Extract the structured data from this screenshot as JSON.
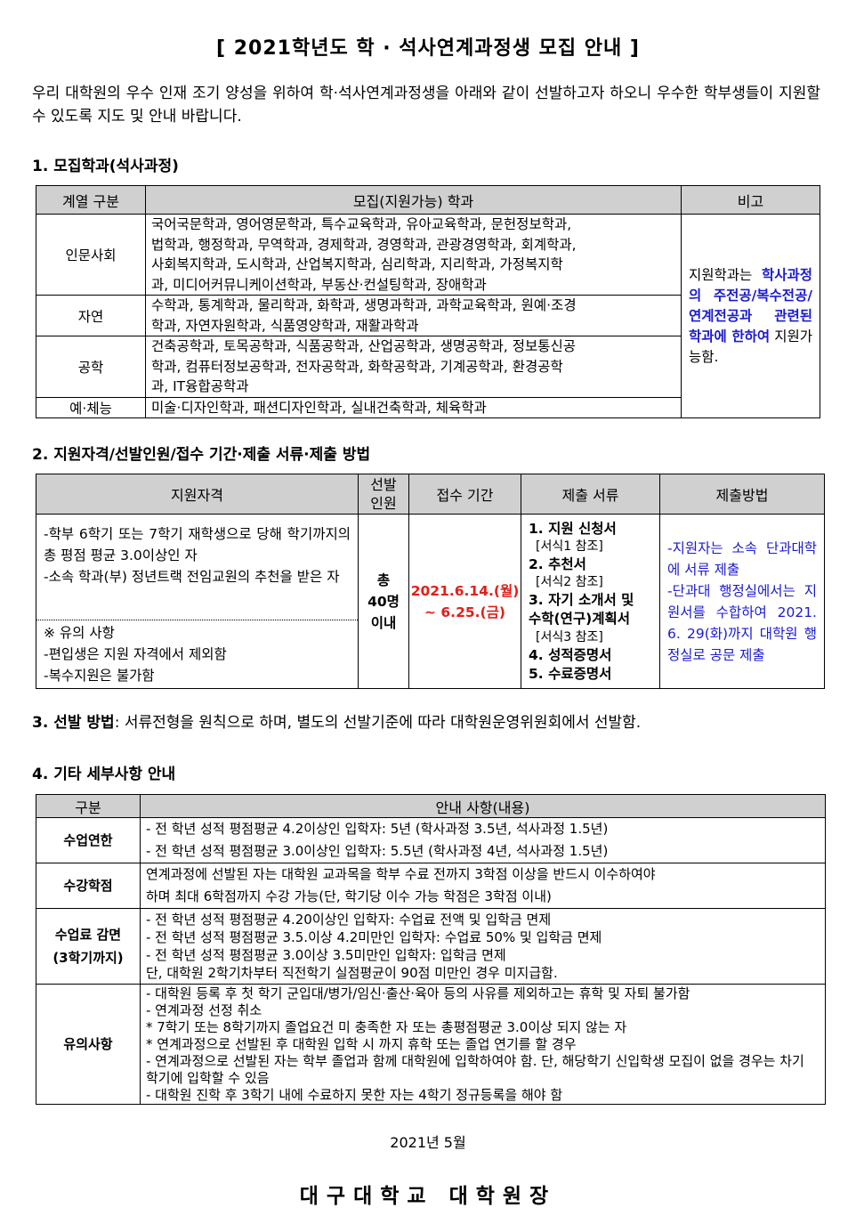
{
  "title": "[ 2021학년도 학 · 석사연계과정생 모집 안내 ]",
  "intro": "   우리 대학원의 우수 인재 조기 양성을 위하여 학·석사연계과정생을 아래와 같이 선발하고자 하오니 우수한 학부생들이 지원할 수 있도록 지도 및 안내 바랍니다.",
  "section1": {
    "heading": "1. 모집학과(석사과정)",
    "headers": [
      "계열 구분",
      "모집(지원가능) 학과",
      "비고"
    ],
    "rows": [
      {
        "category": "인문사회",
        "depts": "국어국문학과, 영어영문학과, 특수교육학과, 유아교육학과, 문헌정보학과,\n법학과, 행정학과, 무역학과, 경제학과, 경영학과, 관광경영학과, 회계학과,\n사회복지학과, 도시학과, 산업복지학과, 심리학과, 지리학과, 가정복지학\n과, 미디어커뮤니케이션학과, 부동산·컨설팅학과, 장애학과"
      },
      {
        "category": "자연",
        "depts": "수학과, 통계학과, 물리학과, 화학과, 생명과학과, 과학교육학과, 원예·조경\n학과, 자연자원학과, 식품영양학과, 재활과학과"
      },
      {
        "category": "공학",
        "depts": "건축공학과, 토목공학과, 식품공학과, 산업공학과, 생명공학과, 정보통신공\n학과, 컴퓨터정보공학과, 전자공학과, 화학공학과, 기계공학과, 환경공학\n과, IT융합공학과"
      },
      {
        "category": "예·체능",
        "depts": "미술·디자인학과, 패션디자인학과, 실내건축학과, 체육학과"
      }
    ],
    "note_prefix": "지원학과는 ",
    "note_highlight": "학사과정의 주전공/복수전공/연계전공과 관련된 학과에 한하여",
    "note_suffix": " 지원가능함."
  },
  "section2": {
    "heading": "2. 지원자격/선발인원/접수 기간·제출 서류·제출 방법",
    "headers": [
      "지원자격",
      "선발\n인원",
      "접수 기간",
      "제출 서류",
      "제출방법"
    ],
    "qualification": "-학부 6학기 또는 7학기 재학생으로 당해 학기까지의 총 평점 평균 3.0이상인 자\n-소속 학과(부) 정년트랙 전임교원의 추천을 받은 자",
    "notes": " ※ 유의 사항\n-편입생은 지원 자격에서 제외함\n-복수지원은 불가함",
    "quota": "총\n40명\n이내",
    "period": "2021.6.14.(월)\n~ 6.25.(금)",
    "documents": [
      {
        "name": "1. 지원 신청서",
        "ref": "[서식1 참조]"
      },
      {
        "name": "2. 추천서",
        "ref": "[서식2 참조]"
      },
      {
        "name": "3. 자기 소개서 및\n   수학(연구)계획서",
        "ref": "[서식3 참조]"
      },
      {
        "name": "4. 성적증명서",
        "ref": ""
      },
      {
        "name": "5. 수료증명서",
        "ref": ""
      }
    ],
    "method": "-지원자는 소속 단과대학에 서류 제출\n-단과대 행정실에서는 지원서를 수합하여 2021. 6. 29(화)까지 대학원 행정실로 공문 제출",
    "colors": {
      "period": "#e0201a",
      "method": "#1a1ad0"
    }
  },
  "section3": {
    "label": "3. 선발 방법",
    "text": ": 서류전형을 원칙으로 하며, 별도의 선발기준에 따라 대학원운영위원회에서 선발함."
  },
  "section4": {
    "heading": "4. 기타 세부사항 안내",
    "headers": [
      "구분",
      "안내 사항(내용)"
    ],
    "rows": [
      {
        "category": "수업연한",
        "content": "- 전 학년 성적 평점평균 4.2이상인 입학자: 5년 (학사과정 3.5년, 석사과정 1.5년)\n- 전 학년 성적 평점평균 3.0이상인 입학자: 5.5년 (학사과정 4년, 석사과정 1.5년)"
      },
      {
        "category": "수강학점",
        "content": "연계과정에 선발된 자는 대학원 교과목을 학부 수료 전까지 3학점 이상을 반드시 이수하여야\n하며 최대 6학점까지 수강 가능(단, 학기당 이수 가능 학점은 3학점 이내)"
      },
      {
        "category": "수업료 감면\n(3학기까지)",
        "content": "- 전 학년 성적 평점평균 4.20이상인 입학자: 수업료 전액 및 입학금 면제\n- 전 학년 성적 평점평균 3.5.이상 4.2미만인 입학자: 수업료 50% 및 입학금 면제\n- 전 학년 성적 평점평균 3.0이상 3.5미만인 입학자: 입학금 면제\n단, 대학원 2학기차부터 직전학기 실점평균이 90점 미만인 경우 미지급함."
      },
      {
        "category": "유의사항",
        "content": "- 대학원 등록 후 첫 학기 군입대/병가/임신·출산·육아 등의 사유를 제외하고는 휴학 및 자퇴 불가함\n- 연계과정 선정 취소\n   * 7학기 또는 8학기까지 졸업요건 미 충족한 자 또는 총평점평균 3.0이상 되지 않는 자\n   * 연계과정으로 선발된 후 대학원 입학 시 까지 휴학 또는 졸업 연기를 할 경우\n- 연계과정으로 선발된 자는 학부 졸업과 함께 대학원에 입학하여야 함. 단, 해당학기 신입학생 모집이 없을 경우는 차기 학기에 입학할 수 있음\n- 대학원 진학 후 3학기 내에 수료하지 못한 자는 4학기 정규등록을 해야 함"
      }
    ]
  },
  "footer": {
    "date": "2021년 5월",
    "signature": "대구대학교  대학원장"
  }
}
